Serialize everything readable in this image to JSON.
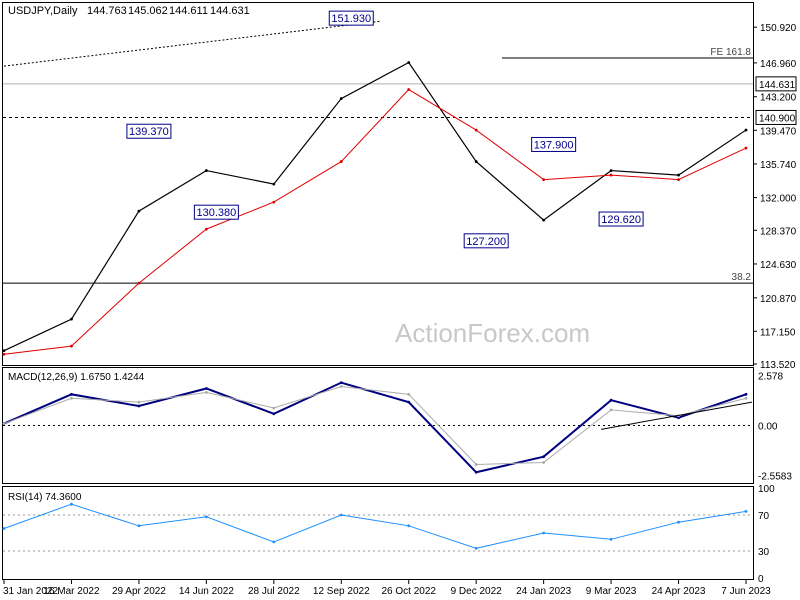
{
  "chart_data": [
    {
      "type": "line",
      "title": "USDJPY,Daily",
      "ohlc": {
        "open": "144.763",
        "high": "145.062",
        "low": "144.611",
        "close": "144.631"
      },
      "ylim": [
        113.52,
        153.5
      ],
      "y_ticks": [
        "150.920",
        "146.960",
        "143.200",
        "139.470",
        "135.740",
        "132.000",
        "128.370",
        "124.630",
        "120.870",
        "117.150",
        "113.520"
      ],
      "current_price": "144.631",
      "level_price": "140.900",
      "x_ticks": [
        "31 Jan 2022",
        "16 Mar 2022",
        "29 Apr 2022",
        "14 Jun 2022",
        "28 Jul 2022",
        "12 Sep 2022",
        "26 Oct 2022",
        "9 Dec 2022",
        "24 Jan 2023",
        "9 Mar 2023",
        "24 Apr 2023",
        "7 Jun 2023"
      ],
      "series": [
        {
          "name": "Price",
          "color": "#000000",
          "x": [
            "31 Jan 2022",
            "16 Mar 2022",
            "29 Apr 2022",
            "14 Jun 2022",
            "28 Jul 2022",
            "12 Sep 2022",
            "26 Oct 2022",
            "9 Dec 2022",
            "24 Jan 2023",
            "9 Mar 2023",
            "24 Apr 2023",
            "7 Jun 2023"
          ],
          "values": [
            115.0,
            118.5,
            130.5,
            135.0,
            133.5,
            143.0,
            147.0,
            136.0,
            129.5,
            135.0,
            134.5,
            139.5
          ]
        },
        {
          "color": "#e00000",
          "x": [
            "31 Jan 2022",
            "16 Mar 2022",
            "29 Apr 2022",
            "14 Jun 2022",
            "28 Jul 2022",
            "12 Sep 2022",
            "26 Oct 2022",
            "9 Dec 2022",
            "24 Jan 2023",
            "9 Mar 2023",
            "24 Apr 2023",
            "7 Jun 2023"
          ],
          "values": [
            114.6,
            115.5,
            122.5,
            128.5,
            131.5,
            136.0,
            144.0,
            139.5,
            134.0,
            134.5,
            134.0,
            137.5
          ]
        }
      ],
      "annotations": [
        {
          "label": "151.930",
          "x": "12 Sep 2022",
          "value": 151.93
        },
        {
          "label": "139.370",
          "x": "29 Apr 2022",
          "value": 139.37
        },
        {
          "label": "130.380",
          "x": "14 Jun 2022",
          "value": 130.38
        },
        {
          "label": "137.900",
          "x": "24 Jan 2023",
          "value": 137.9
        },
        {
          "label": "127.200",
          "x": "9 Dec 2022",
          "value": 127.2
        },
        {
          "label": "129.620",
          "x": "9 Mar 2023",
          "value": 129.62
        }
      ],
      "fib_levels": [
        {
          "label": "FE 161.8",
          "value": 147.5
        },
        {
          "label": "38.2",
          "value": 122.5
        }
      ],
      "watermark": "ActionForex.com",
      "grid": false
    },
    {
      "type": "line",
      "title": "MACD(12,26,9) 1.6750 1.4244",
      "ylim": [
        -2.9,
        2.9
      ],
      "y_ticks": [
        "2.578",
        "0.00",
        "-2.5583"
      ],
      "series": [
        {
          "color": "#000080",
          "x": [
            "31 Jan 2022",
            "16 Mar 2022",
            "29 Apr 2022",
            "14 Jun 2022",
            "28 Jul 2022",
            "12 Sep 2022",
            "26 Oct 2022",
            "9 Dec 2022",
            "24 Jan 2023",
            "9 Mar 2023",
            "24 Apr 2023",
            "7 Jun 2023"
          ],
          "values": [
            0.1,
            1.6,
            1.0,
            1.9,
            0.6,
            2.2,
            1.2,
            -2.4,
            -1.6,
            1.3,
            0.4,
            1.6
          ]
        },
        {
          "color": "#aaaaaa",
          "x": [
            "31 Jan 2022",
            "16 Mar 2022",
            "29 Apr 2022",
            "14 Jun 2022",
            "28 Jul 2022",
            "12 Sep 2022",
            "26 Oct 2022",
            "9 Dec 2022",
            "24 Jan 2023",
            "9 Mar 2023",
            "24 Apr 2023",
            "7 Jun 2023"
          ],
          "values": [
            0.1,
            1.4,
            1.2,
            1.7,
            0.9,
            2.0,
            1.6,
            -2.0,
            -1.9,
            0.8,
            0.5,
            1.4
          ]
        }
      ]
    },
    {
      "type": "line",
      "title": "RSI(14) 74.3600",
      "ylim": [
        0,
        100
      ],
      "y_ticks": [
        "100",
        "70",
        "30",
        "0"
      ],
      "series": [
        {
          "color": "#1e90ff",
          "x": [
            "31 Jan 2022",
            "16 Mar 2022",
            "29 Apr 2022",
            "14 Jun 2022",
            "28 Jul 2022",
            "12 Sep 2022",
            "26 Oct 2022",
            "9 Dec 2022",
            "24 Jan 2023",
            "9 Mar 2023",
            "24 Apr 2023",
            "7 Jun 2023"
          ],
          "values": [
            55,
            82,
            58,
            68,
            40,
            70,
            58,
            33,
            50,
            43,
            62,
            74
          ]
        }
      ]
    }
  ]
}
